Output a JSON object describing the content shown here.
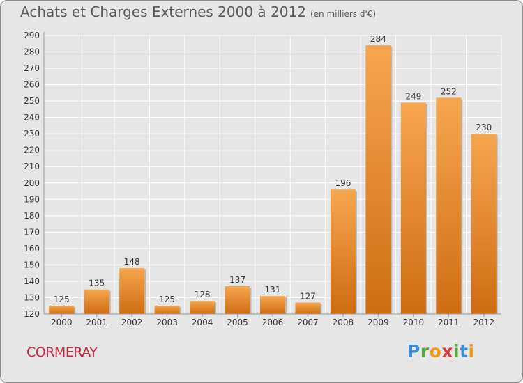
{
  "title": "Achats et Charges Externes 2000 à 2012",
  "subtitle": "(en milliers d'€)",
  "location": "CORMERAY",
  "brand": {
    "letters": [
      "P",
      "r",
      "o",
      "x",
      "i",
      "t",
      "i"
    ],
    "colors": [
      "#3a8fd4",
      "#5aa63c",
      "#f29b1a",
      "#d63a3a",
      "#5aa63c",
      "#3a8fd4",
      "#f29b1a"
    ]
  },
  "colors": {
    "bar_top": "#f6a64e",
    "bar_bottom": "#cf6c12",
    "grid": "#ffffff",
    "axis_text": "#333333"
  },
  "chart_data": {
    "type": "bar",
    "categories": [
      "2000",
      "2001",
      "2002",
      "2003",
      "2004",
      "2005",
      "2006",
      "2007",
      "2008",
      "2009",
      "2010",
      "2011",
      "2012"
    ],
    "values": [
      125,
      135,
      148,
      125,
      128,
      137,
      131,
      127,
      196,
      284,
      249,
      252,
      230
    ],
    "ylim": [
      120,
      290
    ],
    "yticks": [
      120,
      130,
      140,
      150,
      160,
      170,
      180,
      190,
      200,
      210,
      220,
      230,
      240,
      250,
      260,
      270,
      280,
      290
    ],
    "grid": true
  }
}
